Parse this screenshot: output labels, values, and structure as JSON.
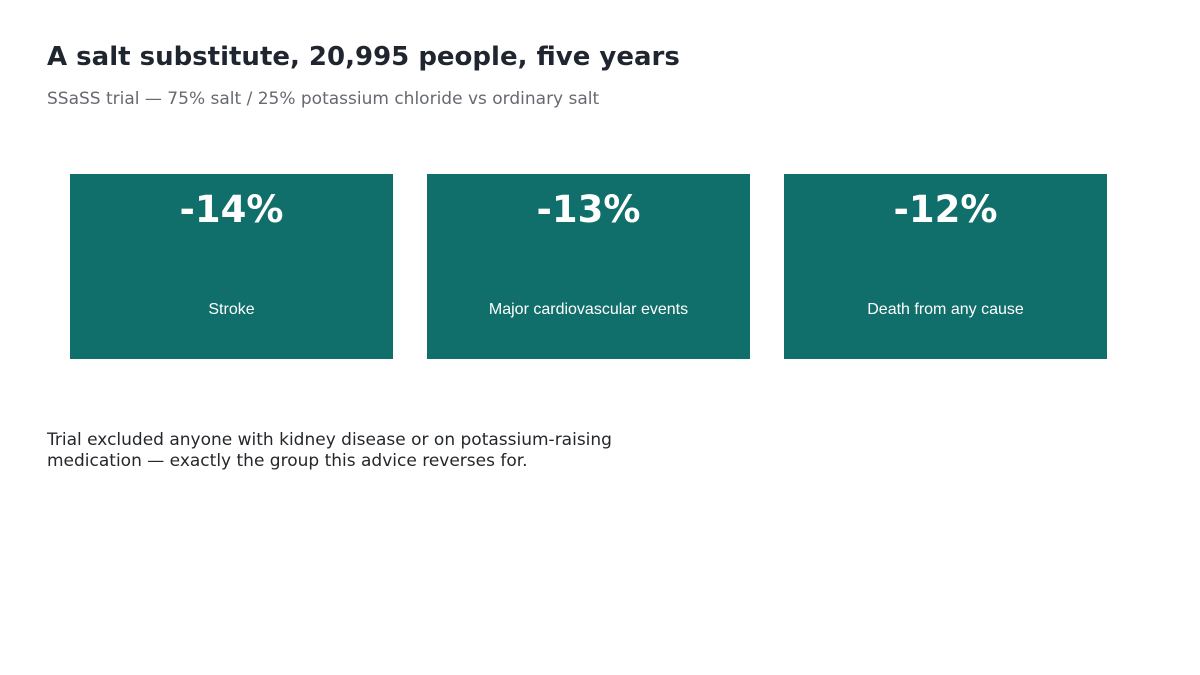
{
  "header": {
    "title": "A salt substitute, 20,995 people, five years",
    "subtitle": "SSaSS trial — 75% salt / 25% potassium chloride vs ordinary salt"
  },
  "cards": [
    {
      "value": "-14%",
      "label": "Stroke"
    },
    {
      "value": "-13%",
      "label": "Major cardiovascular events"
    },
    {
      "value": "-12%",
      "label": "Death from any cause"
    }
  ],
  "footnote": "Trial excluded anyone with kidney disease or on potassium-raising medication — exactly the group this advice reverses for.",
  "colors": {
    "card_background": "#106e6b",
    "title_text": "#1f2630",
    "subtitle_text": "#666a70"
  }
}
